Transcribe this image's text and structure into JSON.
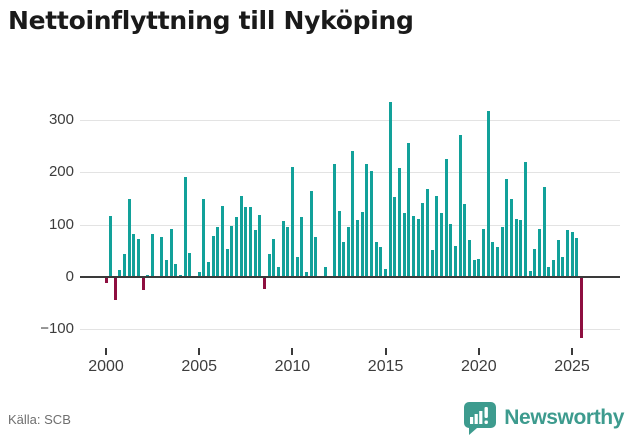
{
  "title": "Nettoinflyttning till Nyköping",
  "footer": {
    "source": "Källa: SCB",
    "brand": "Newsworthy"
  },
  "colors": {
    "positive_bar": "#12a19a",
    "negative_bar": "#8e0f40",
    "grid": "#e3e3e3",
    "zero_line": "#3a3a3a",
    "brand_teal": "#3d9b8e",
    "axis_text": "#3d3d3d"
  },
  "chart_data": {
    "type": "bar",
    "title": "Nettoinflyttning till Nyköping",
    "xlabel": "",
    "ylabel": "",
    "frequency": "quarterly",
    "start_period": "2000Q1",
    "end_period": "2025Q3",
    "x_tick_labels": [
      "2000",
      "2005",
      "2010",
      "2015",
      "2020",
      "2025"
    ],
    "y_ticks": [
      -100,
      0,
      100,
      200,
      300
    ],
    "ylim": [
      -130,
      350
    ],
    "grid": "horizontal",
    "legend": "none",
    "positive_color": "#12a19a",
    "negative_color": "#8e0f40",
    "values": [
      -11,
      117,
      -44,
      13,
      44,
      149,
      82,
      73,
      -25,
      3,
      82,
      2,
      76,
      32,
      92,
      25,
      4,
      191,
      46,
      2,
      9,
      150,
      28,
      78,
      95,
      136,
      53,
      98,
      114,
      154,
      133,
      134,
      89,
      118,
      -22,
      44,
      72,
      19,
      108,
      96,
      210,
      38,
      114,
      9,
      165,
      76,
      2,
      19,
      2,
      216,
      126,
      66,
      95,
      241,
      109,
      125,
      217,
      203,
      67,
      58,
      15,
      335,
      153,
      209,
      123,
      256,
      117,
      111,
      142,
      168,
      52,
      155,
      123,
      225,
      101,
      60,
      272,
      139,
      70,
      32,
      35,
      92,
      318,
      66,
      58,
      96,
      187,
      149,
      111,
      109,
      220,
      11,
      54,
      92,
      172,
      20,
      32,
      71,
      39,
      90,
      86,
      75,
      -116
    ]
  }
}
